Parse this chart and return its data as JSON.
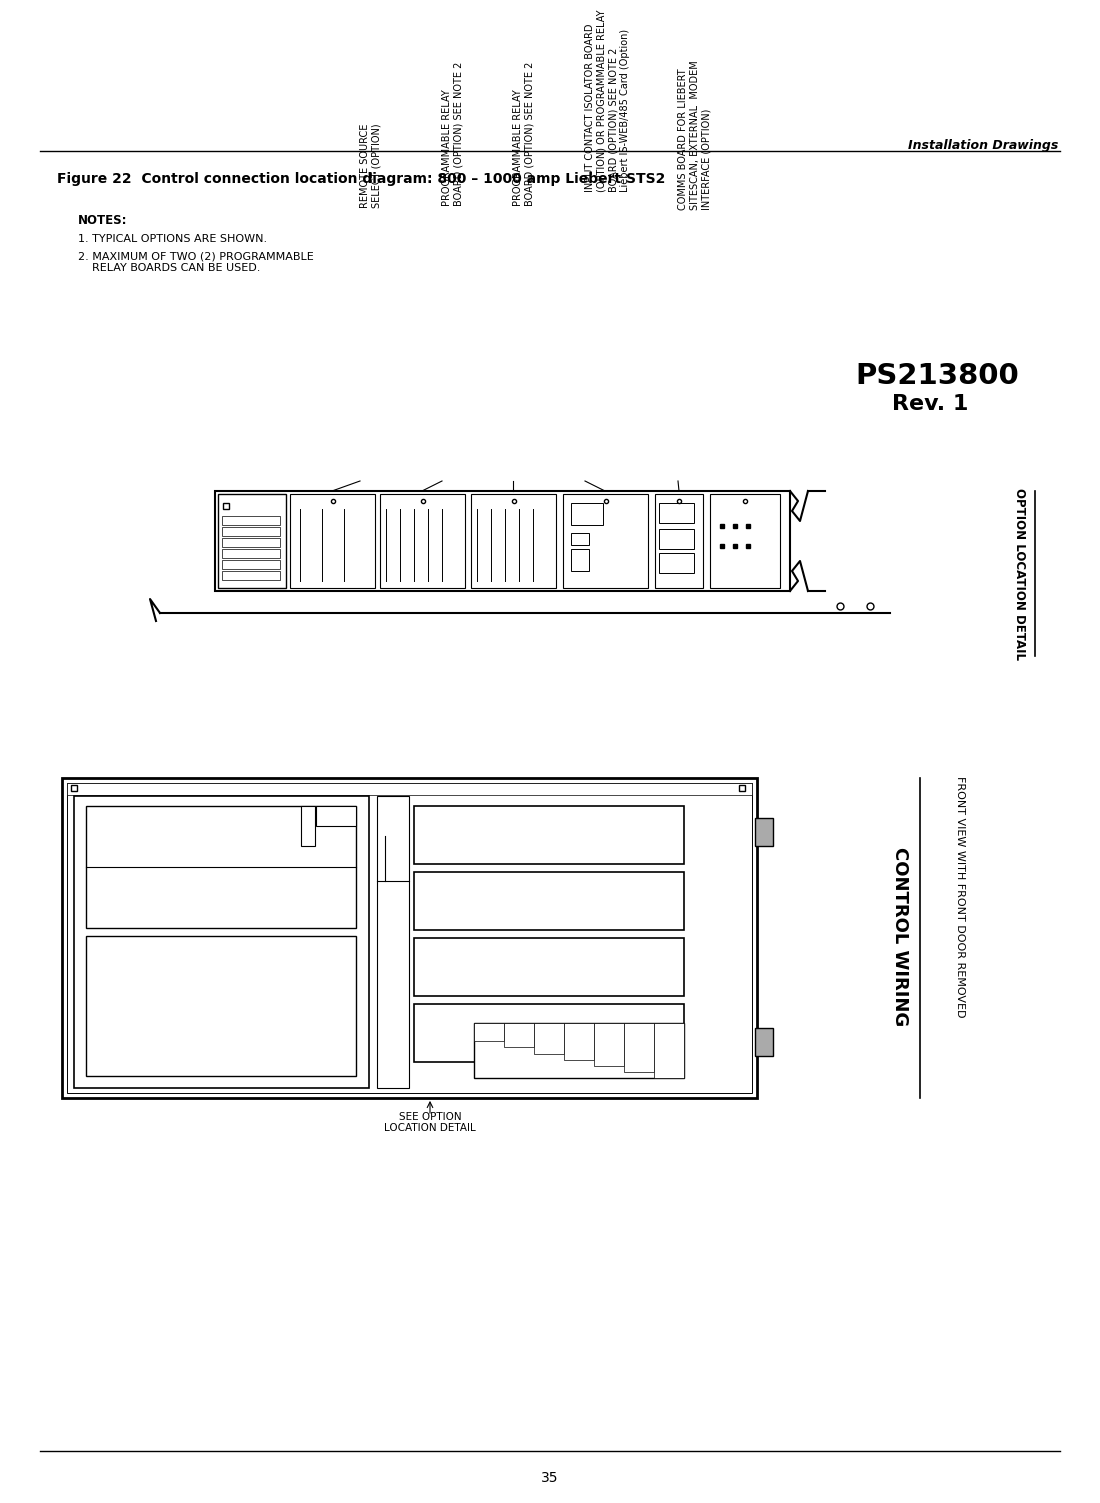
{
  "page_title_right": "Installation Drawings",
  "figure_title": "Figure 22  Control connection location diagram: 800 – 1000 amp Liebert STS2",
  "page_number": "35",
  "ps_number": "PS213800",
  "rev": "Rev. 1",
  "notes_title": "NOTES:",
  "note1": "1. TYPICAL OPTIONS ARE SHOWN.",
  "note2": "2. MAXIMUM OF TWO (2) PROGRAMMABLE\n    RELAY BOARDS CAN BE USED.",
  "label0": "REMOTE SOURCE\nSELECT (OPTION)",
  "label1": "PROGRAMMABLE RELAY\nBOARD (OPTION) SEE NOTE 2",
  "label2": "PROGRAMMABLE RELAY\nBOARD (OPTION) SEE NOTE 2",
  "label3": "INPUT CONTACT ISOLATOR BOARD\n(OPTION) OR PROGRAMMABLE RELAY\nBOARD (OPTION) SEE NOTE 2\nLiebert IS-WEB/485 Card (Option)",
  "label4": "COMMS BOARD FOR LIEBERT\nSITESCAN, EXTERNAL  MODEM\nINTERFACE (OPTION)",
  "option_location_detail": "OPTION LOCATION DETAIL",
  "control_wiring": "CONTROL WIRING",
  "front_view": "FRONT VIEW WITH FRONT DOOR REMOVED",
  "see_option": "SEE OPTION\nLOCATION DETAIL",
  "bg_color": "#ffffff",
  "line_color": "#000000",
  "text_color": "#000000"
}
